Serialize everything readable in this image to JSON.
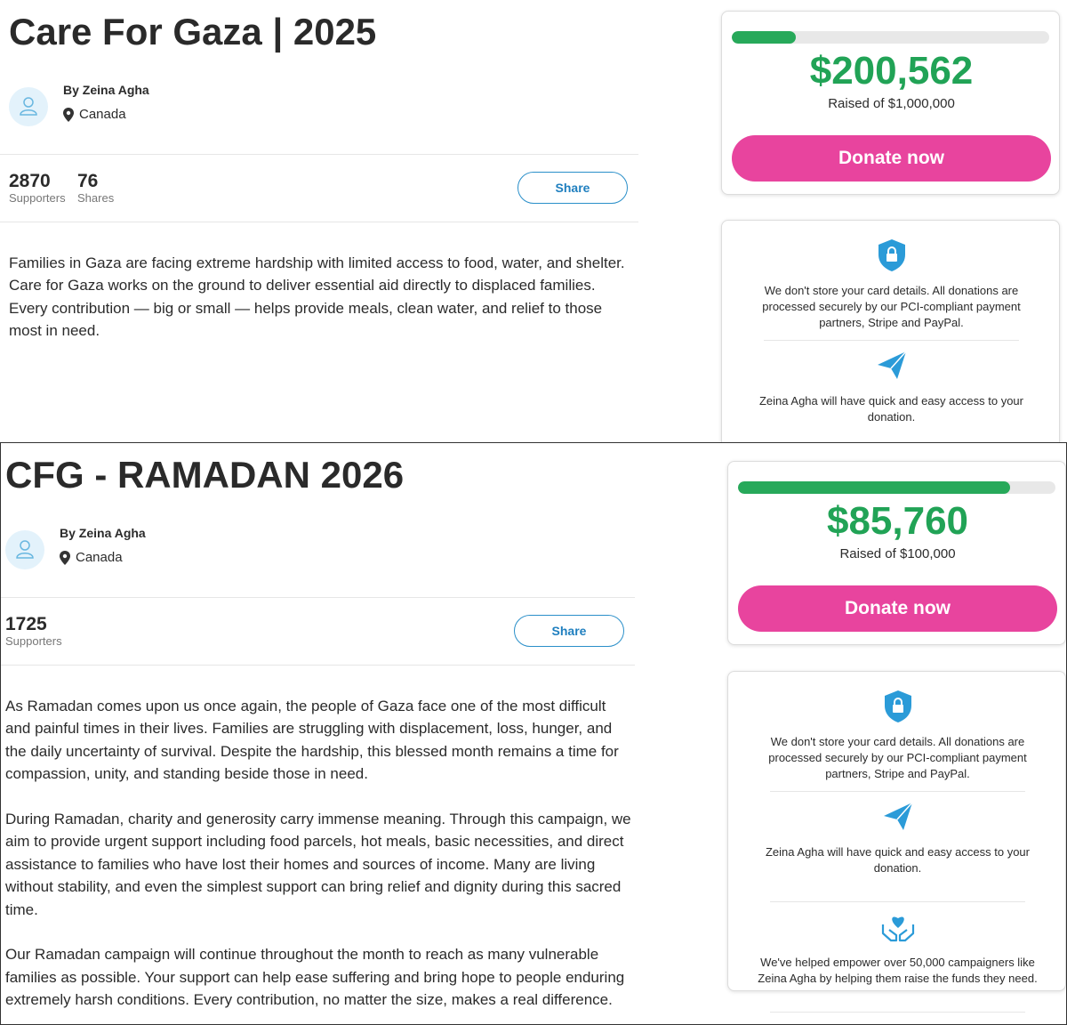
{
  "pages": [
    {
      "title": "Care For Gaza | 2025",
      "organizer": "By Zeina Agha",
      "location": "Canada",
      "stats": [
        {
          "value": "2870",
          "label": "Supporters"
        },
        {
          "value": "76",
          "label": "Shares"
        }
      ],
      "share": "Share",
      "story": [
        "Families in Gaza are facing extreme hardship with limited access to food, water, and shelter. Care for Gaza works on the ground to deliver essential aid directly to displaced families. Every contribution — big or small — helps provide meals, clean water, and relief to those most in need."
      ],
      "raised": "$200,562",
      "raised_of": "Raised of $1,000,000",
      "donate": "Donate now",
      "assurances": [
        "We don't store your card details. All donations are processed securely by our PCI-compliant payment partners, Stripe and PayPal.",
        "Zeina Agha will have quick and easy access to your donation."
      ]
    },
    {
      "title": "CFG - RAMADAN 2026",
      "organizer": "By Zeina Agha",
      "location": "Canada",
      "stats": [
        {
          "value": "1725",
          "label": "Supporters"
        }
      ],
      "share": "Share",
      "story": [
        "As Ramadan comes upon us once again, the people of Gaza face one of the most difficult and painful times in their lives. Families are struggling with displacement, loss, hunger, and the daily uncertainty of survival. Despite the hardship, this blessed month remains a time for compassion, unity, and standing beside those in need.",
        "During Ramadan, charity and generosity carry immense meaning. Through this campaign, we aim to provide urgent support including food parcels, hot meals, basic necessities, and direct assistance to families who have lost their homes and sources of income. Many are living without stability, and even the simplest support can bring relief and dignity during this sacred time.",
        "Our Ramadan campaign will continue throughout the month to reach as many vulnerable families as possible. Your support can help ease suffering and bring hope to people enduring extremely harsh conditions. Every contribution, no matter the size, makes a real difference."
      ],
      "raised": "$85,760",
      "raised_of": "Raised of $100,000",
      "donate": "Donate now",
      "assurances": [
        "We don't store your card details. All donations are processed securely by our PCI-compliant payment partners, Stripe and PayPal.",
        "Zeina Agha will have quick and easy access to your donation.",
        "We've helped empower over 50,000 campaigners like Zeina Agha by helping them raise the funds they need."
      ]
    }
  ]
}
